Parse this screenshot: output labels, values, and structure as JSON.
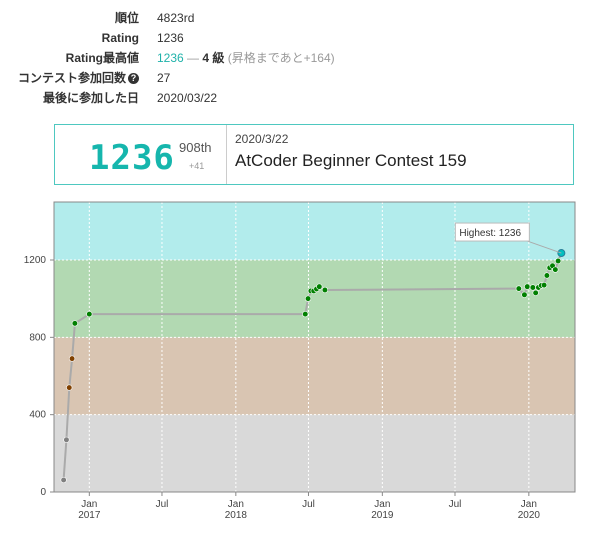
{
  "profile": {
    "rank_label": "順位",
    "rank_value": "4823rd",
    "rating_label": "Rating",
    "rating_value": "1236",
    "highest_label": "Rating最高値",
    "highest_value": "1236",
    "highest_dash": "—",
    "highest_kyu": "4 級",
    "highest_note": "(昇格まであと+164)",
    "contests_label": "コンテスト参加回数",
    "contests_icon": "question-circle-icon",
    "contests_value": "27",
    "last_label": "最後に参加した日",
    "last_value": "2020/03/22"
  },
  "latest": {
    "rating": "1236",
    "place": "908th",
    "diff": "+41",
    "date": "2020/3/22",
    "contest": "AtCoder Beginner Contest 159"
  },
  "chart_data": {
    "type": "line",
    "ylim": [
      0,
      1500
    ],
    "yticks": [
      0,
      400,
      800,
      1200
    ],
    "xlim": [
      "2016-10-05",
      "2020-04-25"
    ],
    "xticks": [
      {
        "date": "2017-01-01",
        "month": "Jan",
        "year": "2017"
      },
      {
        "date": "2017-07-01",
        "month": "Jul",
        "year": ""
      },
      {
        "date": "2018-01-01",
        "month": "Jan",
        "year": "2018"
      },
      {
        "date": "2018-07-01",
        "month": "Jul",
        "year": ""
      },
      {
        "date": "2019-01-01",
        "month": "Jan",
        "year": "2019"
      },
      {
        "date": "2019-07-01",
        "month": "Jul",
        "year": ""
      },
      {
        "date": "2020-01-01",
        "month": "Jan",
        "year": "2020"
      }
    ],
    "bands": [
      {
        "from": 0,
        "to": 400,
        "color": "#d9d9d9"
      },
      {
        "from": 400,
        "to": 800,
        "color": "#d9c5b2"
      },
      {
        "from": 800,
        "to": 1200,
        "color": "#b2d9b2"
      },
      {
        "from": 1200,
        "to": 1500,
        "color": "#b2ecec"
      }
    ],
    "points": [
      {
        "date": "2016-10-29",
        "rating": 62
      },
      {
        "date": "2016-11-05",
        "rating": 270
      },
      {
        "date": "2016-11-12",
        "rating": 540
      },
      {
        "date": "2016-11-19",
        "rating": 690
      },
      {
        "date": "2016-11-26",
        "rating": 872
      },
      {
        "date": "2017-01-01",
        "rating": 920
      },
      {
        "date": "2018-06-23",
        "rating": 920
      },
      {
        "date": "2018-06-30",
        "rating": 1000
      },
      {
        "date": "2018-07-07",
        "rating": 1040
      },
      {
        "date": "2018-07-14",
        "rating": 1040
      },
      {
        "date": "2018-07-21",
        "rating": 1050
      },
      {
        "date": "2018-07-28",
        "rating": 1062
      },
      {
        "date": "2018-08-11",
        "rating": 1045
      },
      {
        "date": "2019-12-07",
        "rating": 1052
      },
      {
        "date": "2019-12-21",
        "rating": 1020
      },
      {
        "date": "2019-12-28",
        "rating": 1062
      },
      {
        "date": "2020-01-11",
        "rating": 1058
      },
      {
        "date": "2020-01-18",
        "rating": 1030
      },
      {
        "date": "2020-01-25",
        "rating": 1058
      },
      {
        "date": "2020-02-01",
        "rating": 1068
      },
      {
        "date": "2020-02-08",
        "rating": 1070
      },
      {
        "date": "2020-02-15",
        "rating": 1120
      },
      {
        "date": "2020-02-22",
        "rating": 1160
      },
      {
        "date": "2020-02-29",
        "rating": 1170
      },
      {
        "date": "2020-03-07",
        "rating": 1150
      },
      {
        "date": "2020-03-14",
        "rating": 1195
      },
      {
        "date": "2020-03-22",
        "rating": 1236
      }
    ],
    "annotation": "Highest: 1236",
    "colors": {
      "gray": "#808080",
      "brown": "#804000",
      "green": "#008000",
      "cyan": "#00c0c0",
      "line": "#aaaaaa"
    }
  }
}
